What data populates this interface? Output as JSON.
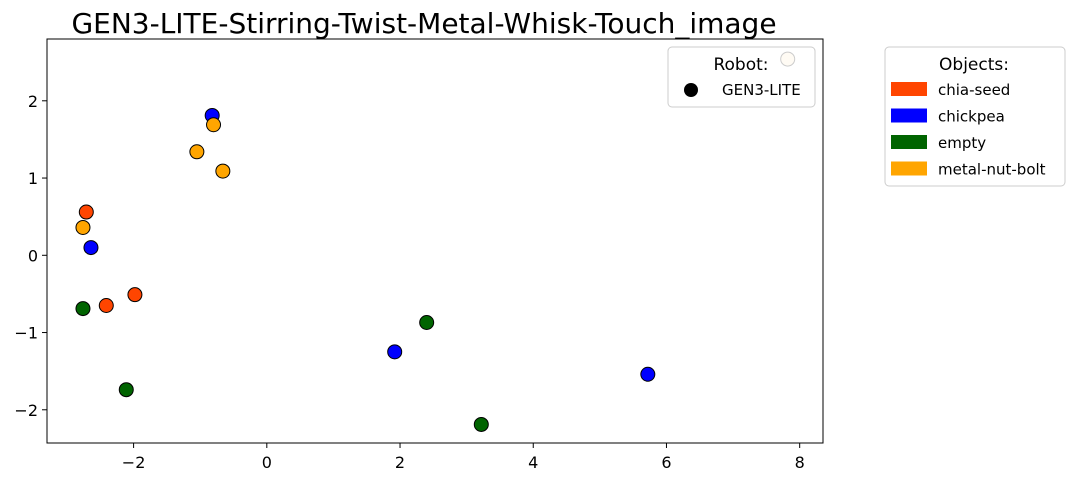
{
  "chart_data": {
    "type": "scatter",
    "title": "GEN3-LITE-Stirring-Twist-Metal-Whisk-Touch_image",
    "xlabel": "",
    "ylabel": "",
    "xlim": [
      -3.3,
      8.35
    ],
    "ylim": [
      -2.43,
      2.8
    ],
    "xticks": [
      -2,
      0,
      2,
      4,
      6,
      8
    ],
    "yticks": [
      -2,
      -1,
      0,
      1,
      2
    ],
    "xtick_labels": [
      "−2",
      "0",
      "2",
      "4",
      "6",
      "8"
    ],
    "ytick_labels": [
      "−2",
      "−1",
      "0",
      "1",
      "2"
    ],
    "grid": false,
    "robot_legend": {
      "title": "Robot:",
      "placement": "top-right inside plot",
      "entries": [
        {
          "label": "GEN3-LITE",
          "color": "#000000"
        }
      ]
    },
    "objects_legend": {
      "title": "Objects:",
      "placement": "outside right",
      "entries": [
        {
          "label": "chia-seed",
          "color": "#FF4500"
        },
        {
          "label": "chickpea",
          "color": "#0000FF"
        },
        {
          "label": "empty",
          "color": "#006400"
        },
        {
          "label": "metal-nut-bolt",
          "color": "#FFA500"
        }
      ]
    },
    "points": [
      {
        "x": 7.82,
        "y": 2.54,
        "color": "#FDEBC8",
        "object": "metal-nut-bolt"
      },
      {
        "x": -0.82,
        "y": 1.81,
        "color": "#0000FF",
        "object": "chickpea"
      },
      {
        "x": -0.8,
        "y": 1.69,
        "color": "#FFA500",
        "object": "metal-nut-bolt"
      },
      {
        "x": -1.05,
        "y": 1.34,
        "color": "#FFA500",
        "object": "metal-nut-bolt"
      },
      {
        "x": -0.66,
        "y": 1.09,
        "color": "#FFA500",
        "object": "metal-nut-bolt"
      },
      {
        "x": -2.71,
        "y": 0.56,
        "color": "#FF4500",
        "object": "chia-seed"
      },
      {
        "x": -2.76,
        "y": 0.36,
        "color": "#FFA500",
        "object": "metal-nut-bolt"
      },
      {
        "x": -2.64,
        "y": 0.1,
        "color": "#0000FF",
        "object": "chickpea"
      },
      {
        "x": -1.98,
        "y": -0.51,
        "color": "#FF4500",
        "object": "chia-seed"
      },
      {
        "x": -2.41,
        "y": -0.65,
        "color": "#FF4500",
        "object": "chia-seed"
      },
      {
        "x": -2.76,
        "y": -0.69,
        "color": "#006400",
        "object": "empty"
      },
      {
        "x": 2.4,
        "y": -0.87,
        "color": "#006400",
        "object": "empty"
      },
      {
        "x": 1.92,
        "y": -1.25,
        "color": "#0000FF",
        "object": "chickpea"
      },
      {
        "x": 5.72,
        "y": -1.54,
        "color": "#0000FF",
        "object": "chickpea"
      },
      {
        "x": -2.11,
        "y": -1.74,
        "color": "#006400",
        "object": "empty"
      },
      {
        "x": 3.22,
        "y": -2.19,
        "color": "#006400",
        "object": "empty"
      }
    ]
  }
}
